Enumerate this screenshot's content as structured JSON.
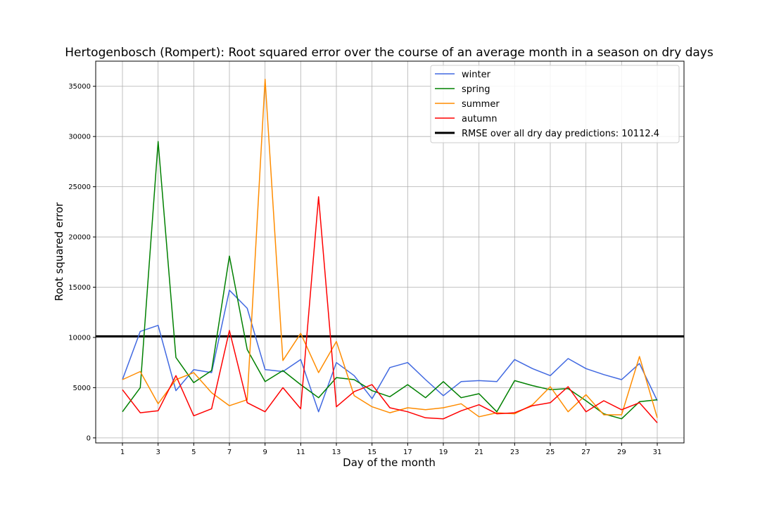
{
  "chart_data": {
    "type": "line",
    "title": "Hertogenbosch (Rompert): Root squared error over the course of an average month in a season on dry days",
    "xlabel": "Day of the month",
    "ylabel": "Root squared error",
    "xlim": [
      -0.5,
      32.5
    ],
    "ylim": [
      -500,
      37500
    ],
    "grid": true,
    "legend_position": "top-right",
    "x": [
      1,
      2,
      3,
      4,
      5,
      6,
      7,
      8,
      9,
      10,
      11,
      12,
      13,
      14,
      15,
      16,
      17,
      18,
      19,
      20,
      21,
      22,
      23,
      24,
      25,
      26,
      27,
      28,
      29,
      30,
      31
    ],
    "xticks": [
      1,
      3,
      5,
      7,
      9,
      11,
      13,
      15,
      17,
      19,
      21,
      23,
      25,
      27,
      29,
      31
    ],
    "yticks": [
      0,
      5000,
      10000,
      15000,
      20000,
      25000,
      30000,
      35000
    ],
    "series": [
      {
        "name": "winter",
        "color": "#4169e1",
        "values": [
          5800,
          10600,
          11200,
          4700,
          6800,
          6500,
          14700,
          12900,
          6800,
          6600,
          7800,
          2600,
          7500,
          6200,
          3900,
          7000,
          7500,
          5800,
          4200,
          5600,
          5700,
          5600,
          7800,
          6900,
          6200,
          7900,
          6900,
          6300,
          5800,
          7400,
          3700
        ]
      },
      {
        "name": "spring",
        "color": "#008000",
        "values": [
          2600,
          5000,
          29500,
          8000,
          5500,
          6700,
          18100,
          8800,
          5600,
          6700,
          5300,
          4000,
          6000,
          5800,
          4700,
          4100,
          5300,
          4000,
          5600,
          4000,
          4400,
          2600,
          5700,
          5200,
          4800,
          4900,
          3700,
          2400,
          1900,
          3600,
          3800
        ]
      },
      {
        "name": "summer",
        "color": "#ff8c00",
        "values": [
          5800,
          6600,
          3400,
          5800,
          6500,
          4500,
          3200,
          3800,
          35700,
          7700,
          10400,
          6500,
          9600,
          4200,
          3100,
          2500,
          3000,
          2800,
          3000,
          3400,
          2100,
          2500,
          2400,
          3300,
          5100,
          2600,
          4300,
          2300,
          2300,
          8100,
          2000
        ]
      },
      {
        "name": "autumn",
        "color": "#ff0000",
        "values": [
          4800,
          2500,
          2700,
          6200,
          2200,
          2900,
          10700,
          3500,
          2600,
          5000,
          2900,
          24000,
          3100,
          4600,
          5300,
          3000,
          2600,
          2000,
          1900,
          2700,
          3300,
          2400,
          2500,
          3200,
          3500,
          5100,
          2600,
          3700,
          2800,
          3500,
          1500
        ]
      }
    ],
    "reference_line": {
      "label": "RMSE over all dry day predictions: 10112.4",
      "value": 10112.4,
      "color": "#000000"
    }
  }
}
